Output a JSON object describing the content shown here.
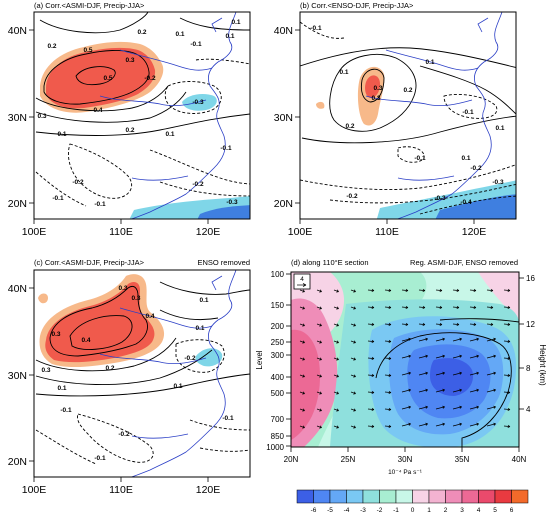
{
  "panels": [
    {
      "id": "a",
      "title": "(a) Corr.<ASMI-DJF, Precip-JJA>",
      "right_label": "",
      "x_ticks": [
        "100E",
        "110E",
        "120E"
      ],
      "y_ticks": [
        "40N",
        "30N",
        "20N"
      ],
      "contour_labels": [
        "0.2",
        "0.5",
        "0.5",
        "0.3",
        "0.2",
        "0.4",
        "0.3",
        "0.1",
        "0.2",
        "0.1",
        "-0.1",
        "-0.2",
        "-0.3",
        "-0.2",
        "-0.2",
        "-0.1",
        "-0.1",
        "0.1",
        "0.1",
        "0.1",
        "-0.3",
        "-0.1"
      ]
    },
    {
      "id": "b",
      "title": "(b) Corr.<ENSO-DJF, Precip-JJA>",
      "right_label": "",
      "x_ticks": [
        "100E",
        "110E",
        "120E"
      ],
      "y_ticks": [
        "40N",
        "30N",
        "20N"
      ],
      "contour_labels": [
        "-0.1",
        "0.1",
        "0.3",
        "0.3",
        "0.2",
        "0.2",
        "0.1",
        "-0.1",
        "-0.2",
        "-0.3",
        "0.1",
        "-0.3",
        "-0.4",
        "-0.2",
        "-0.1",
        "0.1"
      ]
    },
    {
      "id": "c",
      "title": "(c) Corr.<ASMI-DJF, Precip-JJA>",
      "right_label": "ENSO removed",
      "x_ticks": [
        "100E",
        "110E",
        "120E"
      ],
      "y_ticks": [
        "40N",
        "30N",
        "20N"
      ],
      "contour_labels": [
        "0.3",
        "0.3",
        "0.3",
        "0.4",
        "0.4",
        "0.3",
        "0.2",
        "0.1",
        "0.1",
        "0.1",
        "-0.1",
        "-0.2",
        "-0.2",
        "-0.1",
        "-0.1",
        "0.1"
      ]
    },
    {
      "id": "d",
      "title": "(d) along 110°E section",
      "right_label": "Reg. ASMI-DJF, ENSO removed",
      "x_ticks": [
        "20N",
        "25N",
        "30N",
        "35N",
        "40N"
      ],
      "y_ticks": [
        "100",
        "150",
        "200",
        "250",
        "300",
        "400",
        "500",
        "700",
        "850",
        "1000"
      ],
      "y_label": "Level",
      "y2_ticks": [
        "16",
        "12",
        "8",
        "4"
      ],
      "y2_label": "Height (km)",
      "x_sublabel": "10⁻⁴ Pa s⁻¹",
      "vector_key": "4"
    }
  ],
  "colorbar": {
    "labels": [
      "-6",
      "-5",
      "-4",
      "-3",
      "-2",
      "-1",
      "0",
      "1",
      "2",
      "3",
      "4",
      "5",
      "6"
    ],
    "colors": [
      "#3c5fe6",
      "#4f86f3",
      "#64a8f6",
      "#7ac8f3",
      "#8fe0dd",
      "#a8eed2",
      "#c8f7e8",
      "#f7d3e6",
      "#f3b3d1",
      "#ef8db8",
      "#ec6995",
      "#ea4a6c",
      "#e93a40",
      "#f36a2a"
    ]
  },
  "colors": {
    "positive_shade": "#f05a4c",
    "positive_light": "#f7b98a",
    "negative_shade": "#7fd6e8",
    "negative_dark": "#3f7fe0",
    "coast": "#2b3fc6"
  }
}
